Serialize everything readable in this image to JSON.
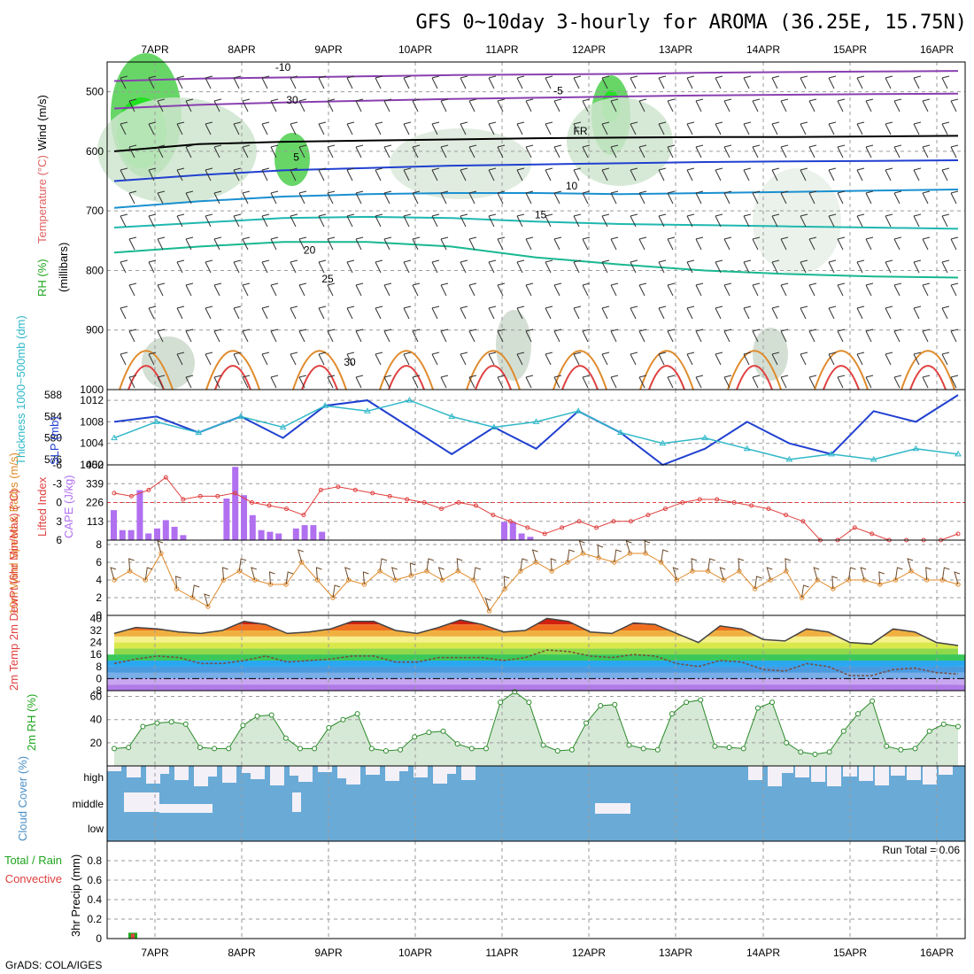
{
  "title": "GFS 0~10day 3-hourly for AROMA (36.25E, 15.75N)",
  "credit": "GrADS: COLA/IGES",
  "dates": [
    "7APR",
    "8APR",
    "9APR",
    "10APR",
    "11APR",
    "12APR",
    "13APR",
    "14APR",
    "15APR",
    "16APR"
  ],
  "colors": {
    "grid": "#9a9a9a",
    "green": "#1fa51f",
    "purple": "#b070f0",
    "blue": "#2040d0",
    "cyan": "#30b8c8",
    "orange": "#e08a2a",
    "red": "#e04040",
    "cloud": "#6aaad6"
  },
  "chart_data": [
    {
      "type": "line",
      "name": "upper-air",
      "ylabel_parts": [
        "Wind (m/s)",
        "Temperature (°C)",
        "RH (%)"
      ],
      "ylabel2": "(millibars)",
      "y_ticks": [
        "500",
        "600",
        "700",
        "800",
        "900",
        "1000"
      ],
      "ylim": [
        1000,
        450
      ],
      "contour_labels": [
        "-10",
        "-5",
        "FR",
        "5",
        "10",
        "15",
        "20",
        "25",
        "30"
      ],
      "rh_label": "30",
      "contours": [
        {
          "label": "-10",
          "level_mb": [
            482,
            478,
            476,
            474,
            472,
            471,
            470,
            468,
            467,
            466,
            465
          ]
        },
        {
          "label": "-5",
          "level_mb": [
            528,
            522,
            518,
            515,
            512,
            510,
            508,
            506,
            505,
            504,
            503
          ]
        },
        {
          "label": "FR",
          "level_mb": [
            600,
            588,
            584,
            582,
            580,
            578,
            577,
            576,
            576,
            575,
            574
          ]
        },
        {
          "label": "5",
          "level_mb": [
            650,
            640,
            632,
            628,
            624,
            622,
            620,
            618,
            617,
            616,
            615
          ]
        },
        {
          "label": "10",
          "level_mb": [
            695,
            684,
            676,
            672,
            670,
            670,
            672,
            670,
            668,
            666,
            664
          ]
        },
        {
          "label": "15",
          "level_mb": [
            728,
            720,
            712,
            710,
            712,
            718,
            722,
            724,
            726,
            728,
            730
          ]
        },
        {
          "label": "20",
          "level_mb": [
            770,
            760,
            752,
            752,
            760,
            778,
            790,
            800,
            806,
            810,
            812
          ]
        }
      ]
    },
    {
      "type": "line",
      "name": "thickness-slp",
      "ylabel_left": "Thickness 1000~500mb (dm)",
      "ylabel_right": "SLP (mb)",
      "y_ticks_left": [
        "576",
        "580",
        "584",
        "588"
      ],
      "y_ticks_right": [
        "1000",
        "1004",
        "1008",
        "1012"
      ],
      "series": [
        {
          "values": [
            1008,
            1009,
            1006,
            1009,
            1005,
            1011,
            1012,
            1007,
            1002,
            1007,
            1003,
            1010,
            1006,
            1000,
            1003,
            1008,
            1004,
            1002,
            1010,
            1008,
            1013
          ]
        },
        {
          "values": [
            580,
            583,
            581,
            584,
            582,
            586,
            585,
            587,
            584,
            582,
            583,
            585,
            581,
            579,
            580,
            578,
            576,
            577,
            576,
            578,
            577
          ]
        }
      ]
    },
    {
      "type": "bar",
      "name": "cape-li",
      "ylabel_left": "Lifted Index",
      "ylabel_right": "CAPE (J/kg)",
      "y_ticks_left": [
        "-6",
        "-3",
        "0",
        "3",
        "6"
      ],
      "y_ticks_right": [
        "113",
        "226",
        "339",
        "452"
      ],
      "cape_values": [
        180,
        60,
        60,
        300,
        40,
        70,
        120,
        80,
        30,
        0,
        0,
        0,
        0,
        250,
        440,
        270,
        150,
        60,
        50,
        40,
        0,
        70,
        90,
        90,
        50,
        0,
        0,
        0,
        0,
        0,
        0,
        0,
        0,
        0,
        0,
        0,
        0,
        0,
        0,
        0,
        0,
        0,
        0,
        0,
        0,
        110,
        110,
        40,
        20
      ],
      "li_values": [
        -1.5,
        -1,
        -2,
        -4,
        -0.5,
        -1,
        -1,
        -1.5,
        0,
        0.5,
        1,
        2,
        -2,
        -2.5,
        -2,
        -1.5,
        -1,
        -0.5,
        0,
        1,
        0,
        0.5,
        2,
        3,
        4,
        5,
        4,
        3,
        4,
        3,
        3,
        2,
        1,
        0,
        -0.5,
        -0.5,
        0,
        0.5,
        1,
        2,
        3,
        6,
        6,
        4,
        5,
        6,
        6,
        6,
        6,
        5
      ]
    },
    {
      "type": "line",
      "name": "wind10m",
      "ylabel": "10m Wind Speed & Barbs (m/s)",
      "y_ticks": [
        "0",
        "2",
        "4",
        "6",
        "8"
      ],
      "ylim": [
        0,
        8
      ],
      "values": [
        4,
        5,
        4,
        7,
        3,
        2,
        1,
        4,
        5,
        4,
        3.5,
        3.5,
        6,
        4,
        2,
        4,
        3.5,
        5,
        4,
        4.5,
        5,
        4,
        5,
        4,
        0.5,
        3,
        5,
        6,
        5,
        6,
        7,
        6.5,
        6,
        7,
        7,
        6,
        4,
        5,
        5,
        4,
        5,
        3,
        4,
        5,
        2,
        4,
        3,
        4,
        4,
        3.5,
        4,
        5,
        4,
        4,
        3.5
      ]
    },
    {
      "type": "area",
      "name": "temp2m",
      "ylabel": "2m Temp 2m DewPt (6hr Min/Max) (°C)",
      "y_ticks": [
        "-8",
        "0",
        "8",
        "16",
        "24",
        "32",
        "40"
      ],
      "ylim": [
        -8,
        42
      ],
      "temp": [
        30,
        34,
        33,
        31,
        30,
        32,
        38,
        36,
        30,
        31,
        33,
        38,
        38,
        32,
        30,
        34,
        39,
        36,
        31,
        32,
        40,
        38,
        31,
        30,
        37,
        36,
        30,
        24,
        35,
        33,
        26,
        25,
        33,
        31,
        24,
        23,
        33,
        31,
        24,
        22
      ],
      "dewpt": [
        10,
        13,
        15,
        14,
        10,
        10,
        12,
        15,
        11,
        12,
        13,
        15,
        15,
        11,
        11,
        14,
        14,
        14,
        12,
        14,
        19,
        18,
        15,
        14,
        16,
        15,
        10,
        8,
        12,
        11,
        6,
        5,
        10,
        8,
        2,
        2,
        6,
        7,
        4,
        3
      ]
    },
    {
      "type": "area",
      "name": "rh2m",
      "ylabel": "2m RH (%)",
      "y_ticks": [
        "20",
        "40",
        "60"
      ],
      "ylim": [
        0,
        65
      ],
      "values": [
        15,
        16,
        34,
        37,
        38,
        36,
        16,
        15,
        15,
        35,
        43,
        44,
        24,
        15,
        15,
        33,
        40,
        45,
        15,
        13,
        14,
        25,
        29,
        30,
        19,
        15,
        15,
        55,
        64,
        55,
        18,
        13,
        14,
        37,
        52,
        53,
        18,
        15,
        14,
        45,
        55,
        57,
        17,
        16,
        15,
        50,
        55,
        20,
        12,
        10,
        12,
        30,
        45,
        56,
        17,
        14,
        15,
        30,
        36,
        34
      ]
    },
    {
      "type": "bar",
      "name": "cloud",
      "ylabel": "Cloud Cover (%)",
      "y_ticks": [
        "high",
        "middle",
        "low"
      ]
    },
    {
      "type": "bar",
      "name": "precip",
      "ylabel": "3hr Precip (mm)",
      "ylabel2_parts": [
        "Total / Rain",
        "Convective"
      ],
      "y_ticks": [
        "0",
        "0.2",
        "0.4",
        "0.6",
        "0.8"
      ],
      "ylim": [
        0,
        1
      ],
      "run_total": "Run Total = 0.06"
    }
  ]
}
